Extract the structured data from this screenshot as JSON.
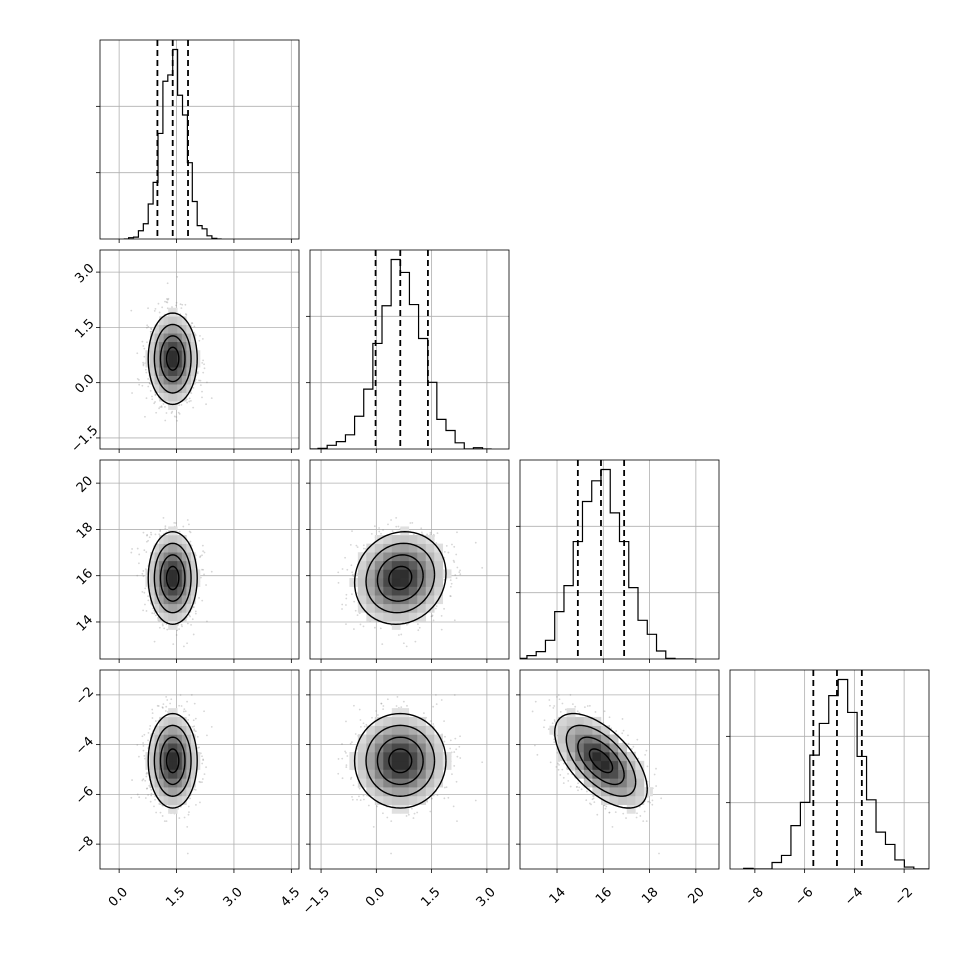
{
  "chart_data": {
    "type": "corner",
    "parameters": [
      {
        "index": 0,
        "range": [
          -0.5,
          4.7
        ],
        "ticks": [
          0.0,
          1.5,
          3.0,
          4.5
        ],
        "tick_labels": [
          "0.0",
          "1.5",
          "3.0",
          "4.5"
        ],
        "mean": 1.4,
        "std": 0.32,
        "quantiles": [
          1.0,
          1.4,
          1.8
        ]
      },
      {
        "index": 1,
        "range": [
          -1.8,
          3.6
        ],
        "ticks": [
          -1.5,
          0.0,
          1.5,
          3.0
        ],
        "tick_labels": [
          "−1.5",
          "0.0",
          "1.5",
          "3.0"
        ],
        "mean": 0.65,
        "std": 0.62,
        "quantiles": [
          -0.02,
          0.65,
          1.4
        ]
      },
      {
        "index": 2,
        "range": [
          12.4,
          21.0
        ],
        "ticks": [
          14,
          16,
          18,
          20
        ],
        "tick_labels": [
          "14",
          "16",
          "18",
          "20"
        ],
        "mean": 15.9,
        "std": 1.0,
        "quantiles": [
          14.9,
          15.9,
          16.9
        ]
      },
      {
        "index": 3,
        "range": [
          -9.0,
          -1.0
        ],
        "ticks": [
          -8,
          -6,
          -4,
          -2
        ],
        "tick_labels": [
          "−8",
          "−6",
          "−4",
          "−2"
        ],
        "mean": -4.65,
        "std": 0.95,
        "quantiles": [
          -5.65,
          -4.7,
          -3.7
        ]
      }
    ],
    "correlations": [
      [
        1.0,
        0.0,
        0.0,
        0.0
      ],
      [
        0.0,
        1.0,
        0.1,
        0.0
      ],
      [
        0.0,
        0.1,
        1.0,
        -0.6
      ],
      [
        0.0,
        0.0,
        -0.6,
        1.0
      ]
    ],
    "histogram_bins": 20,
    "contour_levels_sigma": [
      0.5,
      1.0,
      1.5,
      2.0
    ],
    "grid": true,
    "title": "",
    "legend": "none"
  }
}
